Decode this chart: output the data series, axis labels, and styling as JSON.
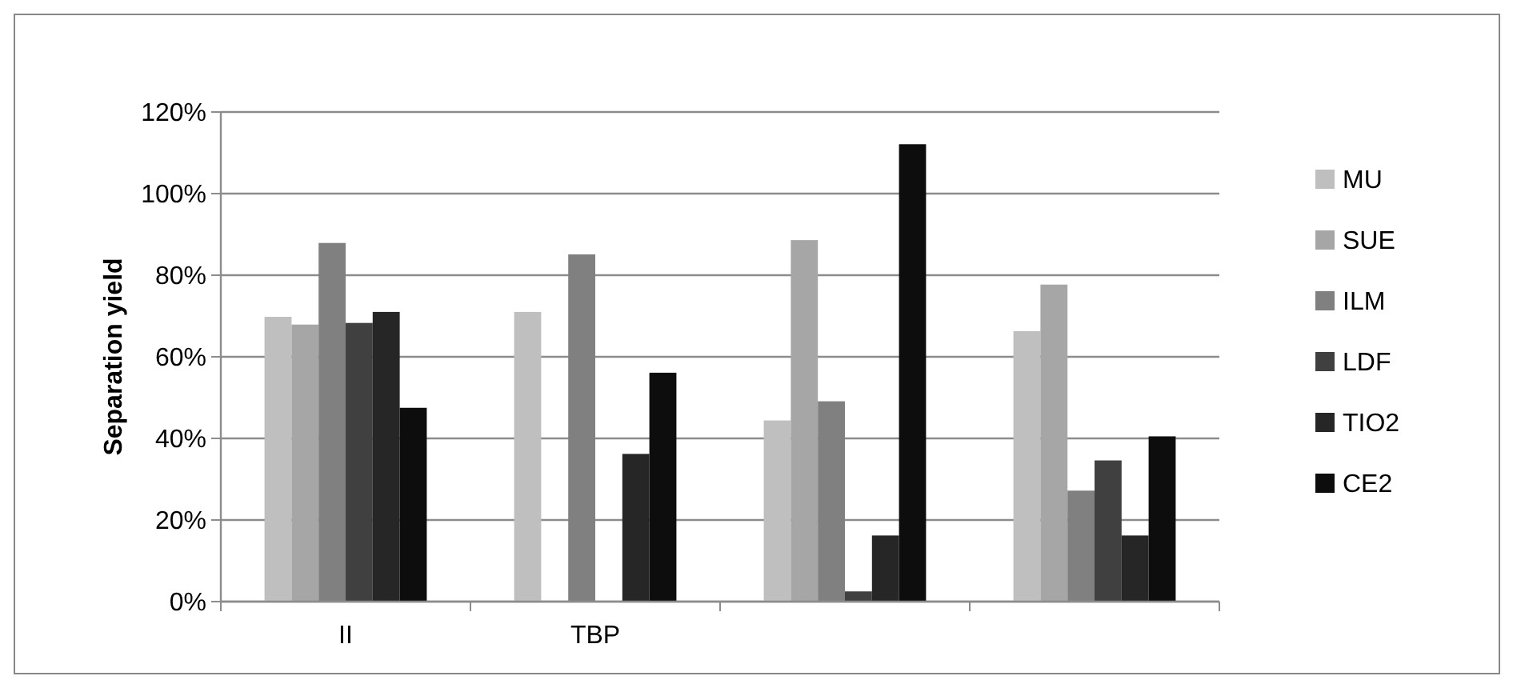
{
  "chart_data": {
    "type": "bar",
    "ylabel": "Separation yield",
    "categories": [
      "II",
      "TBP",
      null,
      null
    ],
    "series": [
      {
        "name": "MU",
        "color": "#bfbfbf",
        "values": [
          69.8,
          71.0,
          44.4,
          66.3
        ]
      },
      {
        "name": "SUE",
        "color": "#a6a6a6",
        "values": [
          67.9,
          null,
          88.6,
          77.7
        ]
      },
      {
        "name": "ILM",
        "color": "#808080",
        "values": [
          87.9,
          85.1,
          49.1,
          27.2
        ]
      },
      {
        "name": "LDF",
        "color": "#404040",
        "values": [
          68.3,
          null,
          2.5,
          34.6
        ]
      },
      {
        "name": "TIO2",
        "color": "#262626",
        "values": [
          71.0,
          36.2,
          16.2,
          16.2
        ]
      },
      {
        "name": "CE2",
        "color": "#0d0d0d",
        "values": [
          47.5,
          56.1,
          112.1,
          40.5
        ]
      }
    ],
    "ylim": [
      0,
      120
    ],
    "yticks": [
      {
        "value": 0,
        "label": "0%"
      },
      {
        "value": 20,
        "label": "20%"
      },
      {
        "value": 40,
        "label": "40%"
      },
      {
        "value": 60,
        "label": "60%"
      },
      {
        "value": 80,
        "label": "80%"
      },
      {
        "value": 100,
        "label": "100%"
      },
      {
        "value": 120,
        "label": "120%"
      }
    ],
    "grid": "y",
    "legend": "right"
  }
}
